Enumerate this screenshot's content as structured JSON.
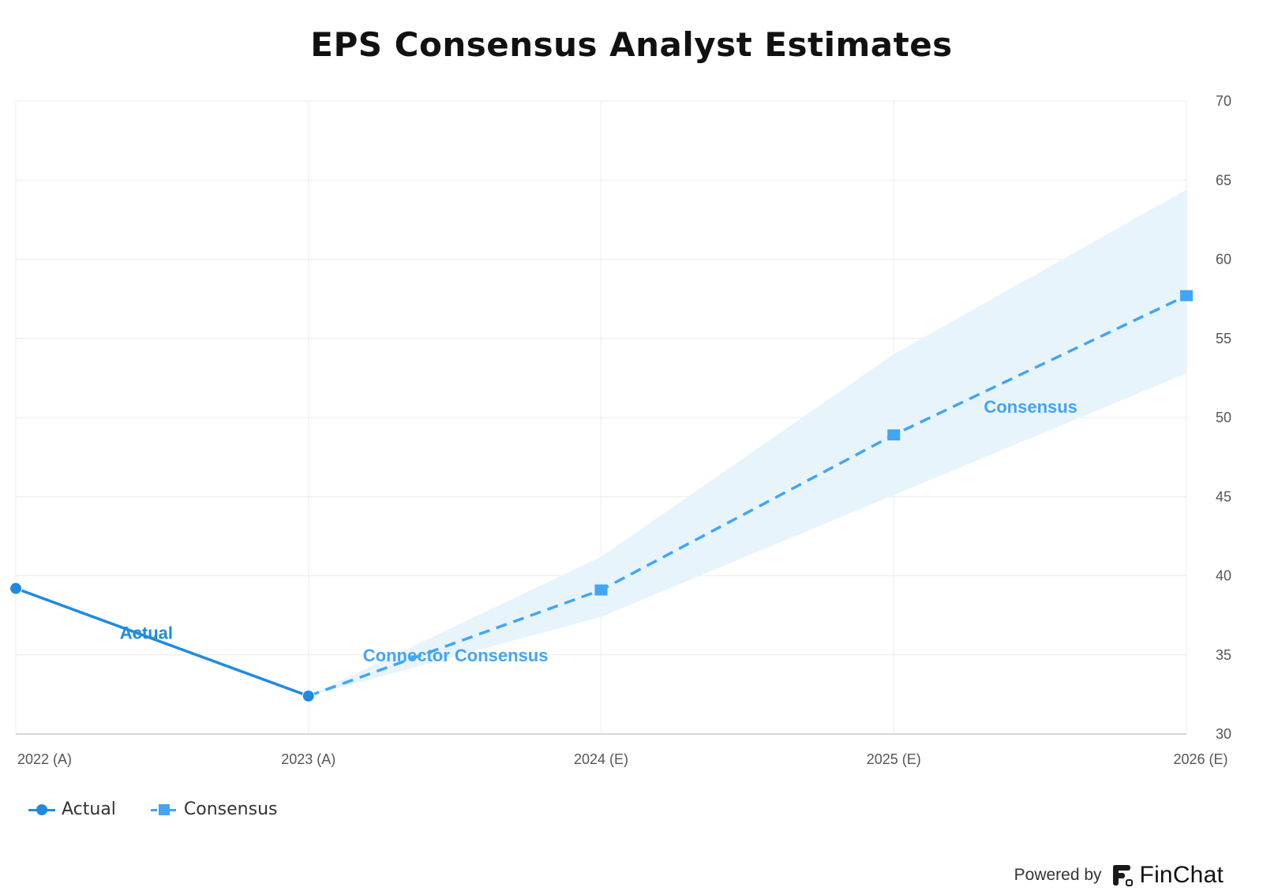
{
  "chart_data": {
    "type": "line",
    "title": "EPS Consensus Analyst Estimates",
    "categories": [
      "2022 (A)",
      "2023 (A)",
      "2024 (E)",
      "2025 (E)",
      "2026 (E)"
    ],
    "y_ticks": [
      "30",
      "35",
      "40",
      "45",
      "50",
      "55",
      "60",
      "65",
      "70"
    ],
    "ylim": [
      30,
      70
    ],
    "y_axis_position": "right",
    "grid": true,
    "legend_position": "bottom-left",
    "series": [
      {
        "name": "Actual",
        "values": [
          39.2,
          32.4,
          null,
          null,
          null
        ],
        "marker": "circle",
        "style": "solid",
        "color": "#1f8be0"
      },
      {
        "name": "Consensus",
        "values": [
          null,
          32.4,
          39.1,
          48.9,
          57.7
        ],
        "marker": "square",
        "style": "dashed",
        "color": "#42a5f5"
      }
    ],
    "range_band": {
      "x": [
        "2023 (A)",
        "2024 (E)",
        "2025 (E)",
        "2026 (E)"
      ],
      "high": [
        32.4,
        41.2,
        54.0,
        64.4
      ],
      "low": [
        32.4,
        37.4,
        45.1,
        52.8
      ],
      "color": "#e8f4fc"
    },
    "annotations": [
      {
        "text": "Actual",
        "color": "#1f8be0"
      },
      {
        "text": "Connector Consensus",
        "color": "#42a5f5"
      },
      {
        "text": "Consensus",
        "color": "#42a5f5"
      }
    ]
  },
  "legend": [
    {
      "label": "Actual"
    },
    {
      "label": "Consensus"
    }
  ],
  "footer": {
    "powered_by": "Powered by",
    "brand": "FinChat"
  }
}
